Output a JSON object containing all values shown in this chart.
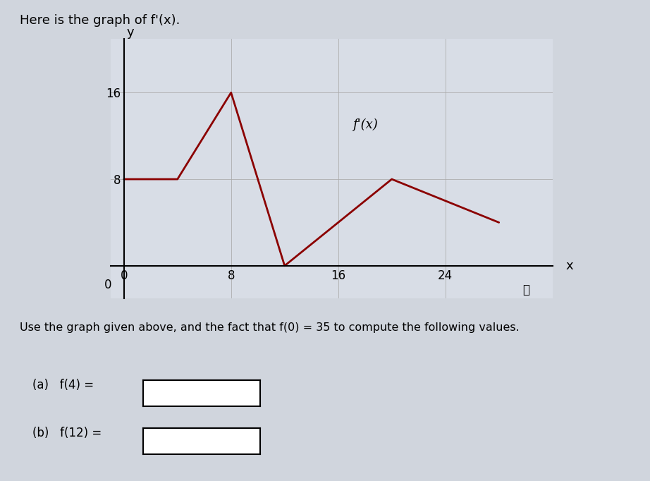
{
  "title": "Here is the graph of f'(x).",
  "graph_label": "f'(x)",
  "line_x": [
    0,
    4,
    8,
    12,
    16,
    20,
    28
  ],
  "line_y": [
    8,
    8,
    16,
    0,
    4,
    8,
    4
  ],
  "line_color": "#8B0000",
  "line_width": 2.0,
  "xlim": [
    -1,
    32
  ],
  "ylim": [
    -3,
    21
  ],
  "xticks": [
    0,
    8,
    16,
    24
  ],
  "yticks": [
    8,
    16
  ],
  "xlabel": "x",
  "ylabel": "y",
  "background_color": "#d8dde6",
  "plot_bg_color": "#d8dde6",
  "grid_color": "#aaaaaa",
  "text_instructions": "Use the graph given above, and the fact that f(0) = 35 to compute the following values.",
  "part_a_label": "(a)   f(4) =",
  "part_b_label": "(b)   f(12) =",
  "info_circle": "ⓘ",
  "title_fontsize": 13,
  "label_fontsize": 12,
  "tick_fontsize": 12,
  "axis_fontsize": 13
}
